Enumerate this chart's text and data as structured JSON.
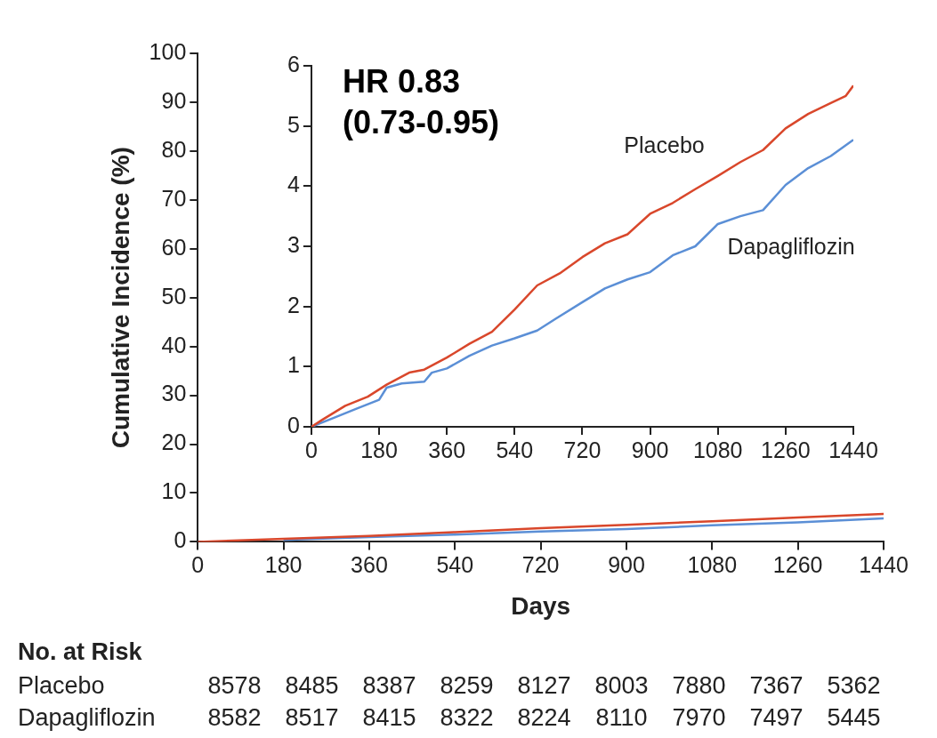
{
  "chart_data": [
    {
      "type": "line",
      "xlabel": "Days",
      "ylabel": "Cumulative Incidence (%)",
      "xlim": [
        0,
        1440
      ],
      "xticks": [
        0,
        180,
        360,
        540,
        720,
        900,
        1080,
        1260,
        1440
      ],
      "ylim": [
        0,
        100
      ],
      "yticks": [
        0,
        10,
        20,
        30,
        40,
        50,
        60,
        70,
        80,
        90,
        100
      ],
      "marker": "none",
      "annotations": [
        "No. at Risk",
        "Placebo 8578 8485 8387 8259 8127 8003 7880 7367 5362",
        "Dapagliflozin 8582 8517 8415 8322 8224 8110 7970 7497 5445"
      ],
      "series": [
        {
          "color": "#d9472b",
          "x": [
            0,
            180,
            360,
            540,
            720,
            900,
            1080,
            1260,
            1440
          ],
          "values": [
            0,
            0.6,
            1.2,
            2,
            2.8,
            3.5,
            4.2,
            5,
            5.7
          ]
        },
        {
          "color": "#5b8fd6",
          "x": [
            180,
            360,
            540,
            720,
            900,
            1080,
            1260,
            1440
          ],
          "values": [
            0.4,
            1,
            1.5,
            2.1,
            2.6,
            3.4,
            4,
            4.8
          ]
        }
      ]
    },
    {
      "type": "line",
      "xlim": [
        0,
        1440
      ],
      "xticks": [
        0,
        180,
        360,
        540,
        720,
        900,
        1080,
        1260,
        1440
      ],
      "ylim": [
        0,
        6
      ],
      "yticks": [
        0,
        1,
        2,
        3,
        4,
        5,
        6
      ],
      "marker": "none",
      "annotations": [
        "HR 0.83",
        "(0.73-0.95)"
      ],
      "series": [
        {
          "name": "Placebo",
          "color": "#d9472b",
          "x": [
            0,
            30,
            90,
            150,
            200,
            260,
            300,
            360,
            420,
            480,
            540,
            600,
            660,
            720,
            780,
            840,
            900,
            960,
            1020,
            1080,
            1140,
            1200,
            1260,
            1320,
            1380,
            1420,
            1440
          ],
          "values": [
            0,
            0.12,
            0.35,
            0.5,
            0.7,
            0.9,
            0.95,
            1.15,
            1.38,
            1.58,
            1.95,
            2.35,
            2.55,
            2.82,
            3.05,
            3.2,
            3.54,
            3.72,
            3.95,
            4.17,
            4.4,
            4.6,
            4.96,
            5.2,
            5.38,
            5.5,
            5.67
          ]
        },
        {
          "name": "Dapagliflozin",
          "color": "#5b8fd6",
          "x": [
            0,
            60,
            120,
            180,
            200,
            240,
            300,
            320,
            360,
            420,
            480,
            540,
            600,
            650,
            720,
            780,
            840,
            900,
            960,
            1020,
            1080,
            1140,
            1200,
            1260,
            1320,
            1380,
            1440
          ],
          "values": [
            0,
            0.15,
            0.3,
            0.45,
            0.65,
            0.72,
            0.75,
            0.9,
            0.97,
            1.18,
            1.35,
            1.47,
            1.6,
            1.8,
            2.07,
            2.3,
            2.45,
            2.57,
            2.85,
            3.0,
            3.37,
            3.5,
            3.6,
            4.02,
            4.3,
            4.5,
            4.77
          ]
        }
      ]
    }
  ]
}
